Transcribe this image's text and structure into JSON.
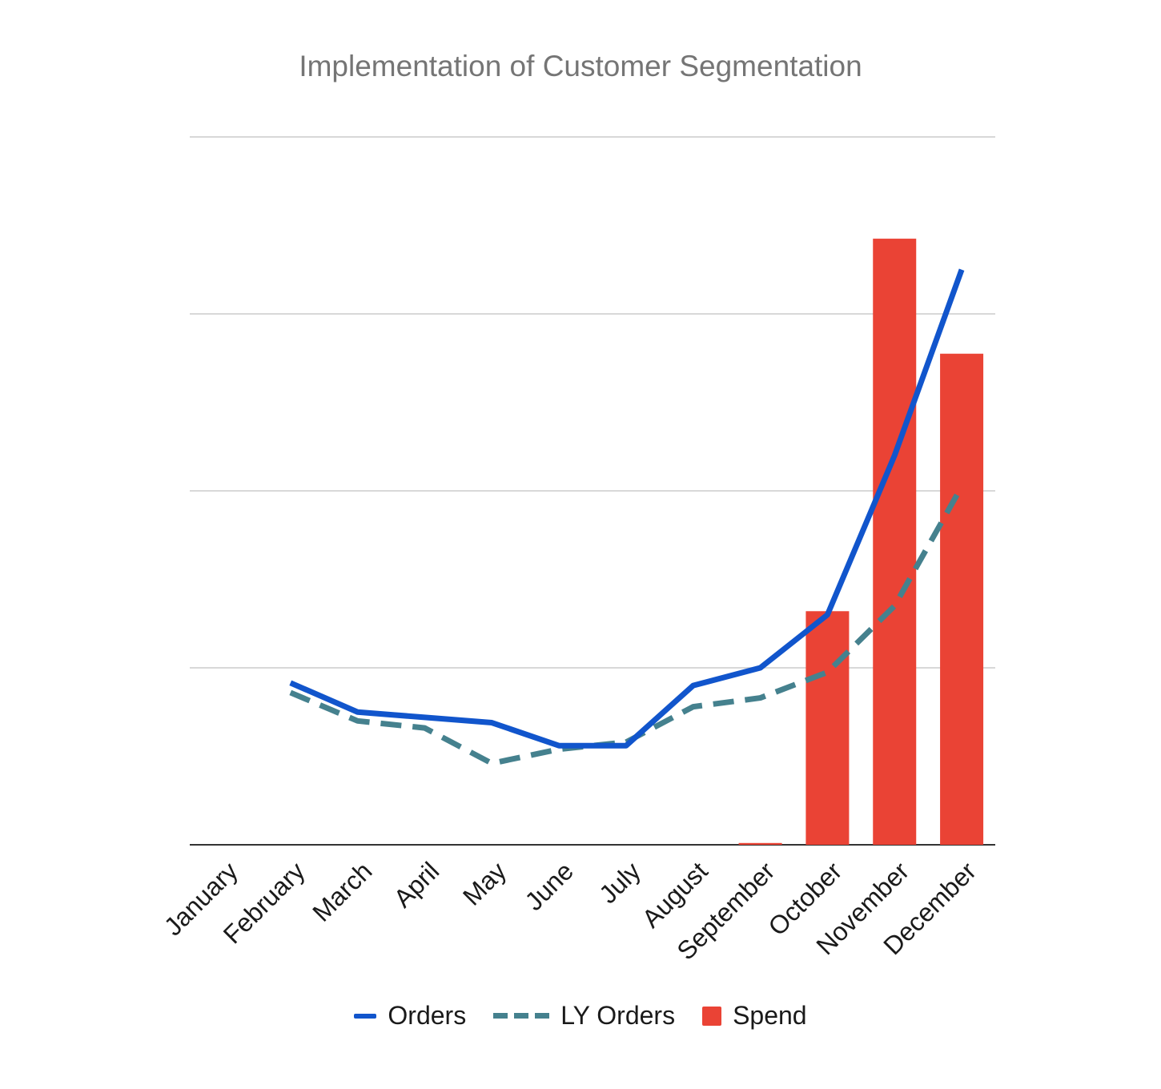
{
  "chart_data": {
    "type": "bar",
    "title": "Implementation of Customer Segmentation",
    "xlabel": "",
    "ylabel": "",
    "categories": [
      "January",
      "February",
      "March",
      "April",
      "May",
      "June",
      "July",
      "August",
      "September",
      "October",
      "November",
      "December"
    ],
    "ylim": [
      0,
      8
    ],
    "grid": true,
    "legend_position": "bottom",
    "series": [
      {
        "name": "Orders",
        "kind": "line",
        "style": "solid",
        "color": "#1155CC",
        "values": [
          null,
          1.83,
          1.5,
          1.44,
          1.38,
          1.12,
          1.12,
          1.8,
          2.0,
          2.6,
          4.4,
          6.5
        ]
      },
      {
        "name": "LY Orders",
        "kind": "line",
        "style": "dashed",
        "color": "#45818E",
        "values": [
          null,
          1.72,
          1.4,
          1.32,
          0.92,
          1.08,
          1.16,
          1.56,
          1.66,
          1.95,
          2.7,
          4.05
        ]
      },
      {
        "name": "Spend",
        "kind": "bar",
        "color": "#EA4335",
        "values": [
          0,
          0,
          0,
          0,
          0,
          0,
          0,
          0,
          0.02,
          2.64,
          6.85,
          5.55
        ]
      }
    ]
  }
}
